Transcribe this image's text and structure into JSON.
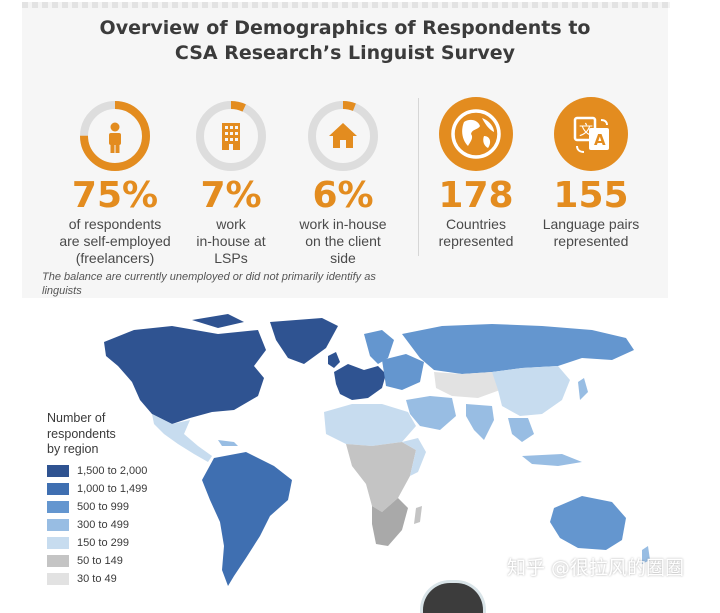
{
  "title": {
    "line1": "Overview of Demographics of Respondents to",
    "line2": "CSA Research’s Linguist Survey"
  },
  "colors": {
    "accent": "#e38c1f",
    "ring_track": "#dddddd",
    "legend": [
      "#2f5391",
      "#3f6fb1",
      "#6496cf",
      "#98bde3",
      "#c7dcef",
      "#c4c4c4",
      "#e2e2e2"
    ]
  },
  "stats": [
    {
      "icon": "person-icon",
      "ring_fraction": 0.75,
      "value": "75%",
      "desc": [
        "of respondents",
        "are self-employed",
        "(freelancers)"
      ]
    },
    {
      "icon": "building-icon",
      "ring_fraction": 0.07,
      "value": "7%",
      "desc": [
        "work",
        "in-house at",
        "LSPs"
      ]
    },
    {
      "icon": "house-icon",
      "ring_fraction": 0.06,
      "value": "6%",
      "desc": [
        "work in-house",
        "on the client",
        "side"
      ]
    },
    {
      "icon": "globe-icon",
      "value": "178",
      "desc": [
        "Countries",
        "represented"
      ]
    },
    {
      "icon": "language-icon",
      "value": "155",
      "desc": [
        "Language pairs",
        "represented"
      ]
    }
  ],
  "note": "The balance are currently unemployed or did not primarily identify as linguists",
  "legend": {
    "title": [
      "Number of",
      "respondents",
      "by region"
    ],
    "items": [
      "1,500 to 2,000",
      "1,000 to 1,499",
      "500 to 999",
      "300 to 499",
      "150 to 299",
      "50 to 149",
      "30 to 49"
    ]
  },
  "watermark": "知乎 @很拉风的圈圈"
}
